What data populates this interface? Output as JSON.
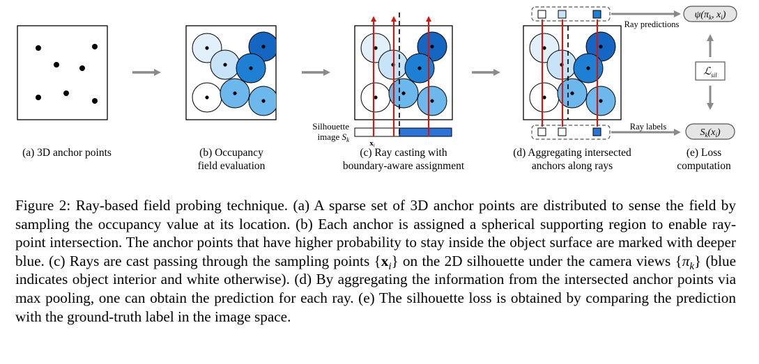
{
  "panels": {
    "a": {
      "caption": "(a) 3D anchor points"
    },
    "b": {
      "caption_line1": "(b)  Occupancy",
      "caption_line2": "field evaluation"
    },
    "c": {
      "caption_line1": "(c) Ray casting with",
      "caption_line2": "boundary-aware assignment",
      "silhouette_line1": "Silhouette",
      "silhouette_word": "image",
      "silhouette_symbol": "S",
      "silhouette_sub": "k",
      "sample_symbol": "x",
      "sample_sub": "i"
    },
    "d": {
      "caption_line1": "(d) Aggregating  intersected",
      "caption_line2": "anchors along rays"
    },
    "e": {
      "caption_line1": "(e) Loss",
      "caption_line2": "computation",
      "pred_label": "Ray predictions",
      "gt_label": "Ray labels",
      "pred_box": "ψ(π",
      "pred_box_k": "k",
      "pred_box_mid": ", x",
      "pred_box_i": "i",
      "pred_box_end": ")",
      "loss_symbol": "ℒ",
      "loss_sub": "sil",
      "gt_box": "S",
      "gt_box_k": "k",
      "gt_box_mid": "(x",
      "gt_box_i": "i",
      "gt_box_end": ")"
    }
  },
  "colors": {
    "ray": "#cc1a12",
    "silhouette_blue": "#2d74d6",
    "flow_arrow": "#8a8a8a",
    "blue_levels": [
      "#ffffff",
      "#e2f0fb",
      "#c6e3f7",
      "#a4d2f2",
      "#6cb8ec",
      "#3498e0",
      "#1f7fd2",
      "#1566c2"
    ]
  },
  "caption": {
    "label": "Figure 2:",
    "t1": " Ray-based field probing technique. (a) A sparse set of 3D anchor points are distributed to sense the field by sampling the occupancy value at its location. (b) Each anchor is assigned a spherical supporting region to enable ray-point intersection. The anchor points that have higher probability to stay inside the object surface are marked with deeper blue. (c) Rays are cast passing through the sampling points {",
    "m1": "x",
    "m1_sub": "i",
    "t2": "} on the 2D silhouette under the camera views {",
    "m2": "π",
    "m2_sub": "k",
    "t3": "} (blue indicates object interior and white otherwise). (d) By aggregating the information from the intersected anchor points via max pooling, one can obtain the prediction for each ray. (e) The silhouette loss is obtained by comparing the prediction with the ground-truth label in the image space."
  }
}
